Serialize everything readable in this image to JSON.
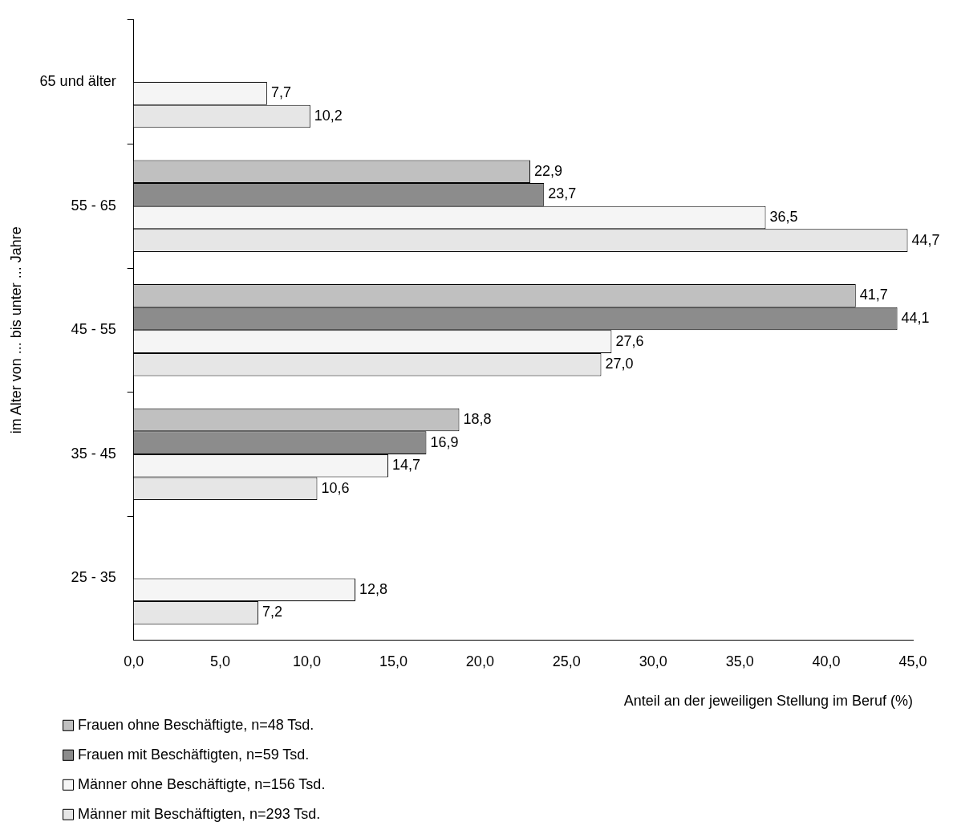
{
  "chart_data": {
    "type": "bar",
    "orientation": "horizontal",
    "xlabel": "Anteil an der jeweiligen Stellung im Beruf (%)",
    "ylabel": "im Alter von ... bis unter ... Jahre",
    "categories": [
      "65 und älter",
      "55 - 65",
      "45 - 55",
      "35 - 45",
      "25 - 35"
    ],
    "series": [
      {
        "name": "Frauen ohne Beschäftigte, n=48 Tsd.",
        "color": "#c0c0c0",
        "values": [
          null,
          22.9,
          41.7,
          18.8,
          null
        ],
        "value_labels": [
          null,
          "22,9",
          "41,7",
          "18,8",
          null
        ]
      },
      {
        "name": "Frauen mit Beschäftigten, n=59 Tsd.",
        "color": "#8c8c8c",
        "values": [
          null,
          23.7,
          44.1,
          16.9,
          null
        ],
        "value_labels": [
          null,
          "23,7",
          "44,1",
          "16,9",
          null
        ]
      },
      {
        "name": "Männer ohne Beschäftigte, n=156 Tsd.",
        "color": "#f5f5f5",
        "values": [
          7.7,
          36.5,
          27.6,
          14.7,
          12.8
        ],
        "value_labels": [
          "7,7",
          "36,5",
          "27,6",
          "14,7",
          "12,8"
        ]
      },
      {
        "name": "Männer mit Beschäftigten, n=293 Tsd.",
        "color": "#e6e6e6",
        "values": [
          10.2,
          44.7,
          27.0,
          10.6,
          7.2
        ],
        "value_labels": [
          "10,2",
          "44,7",
          "27,0",
          "10,6",
          "7,2"
        ]
      }
    ],
    "xlim": [
      0,
      45
    ],
    "xticks": [
      {
        "value": 0,
        "label": "0,0"
      },
      {
        "value": 5,
        "label": "5,0"
      },
      {
        "value": 10,
        "label": "10,0"
      },
      {
        "value": 15,
        "label": "15,0"
      },
      {
        "value": 20,
        "label": "20,0"
      },
      {
        "value": 25,
        "label": "25,0"
      },
      {
        "value": 30,
        "label": "30,0"
      },
      {
        "value": 35,
        "label": "35,0"
      },
      {
        "value": 40,
        "label": "40,0"
      },
      {
        "value": 45,
        "label": "45,0"
      }
    ],
    "grid": false,
    "legend": "bottom left"
  }
}
